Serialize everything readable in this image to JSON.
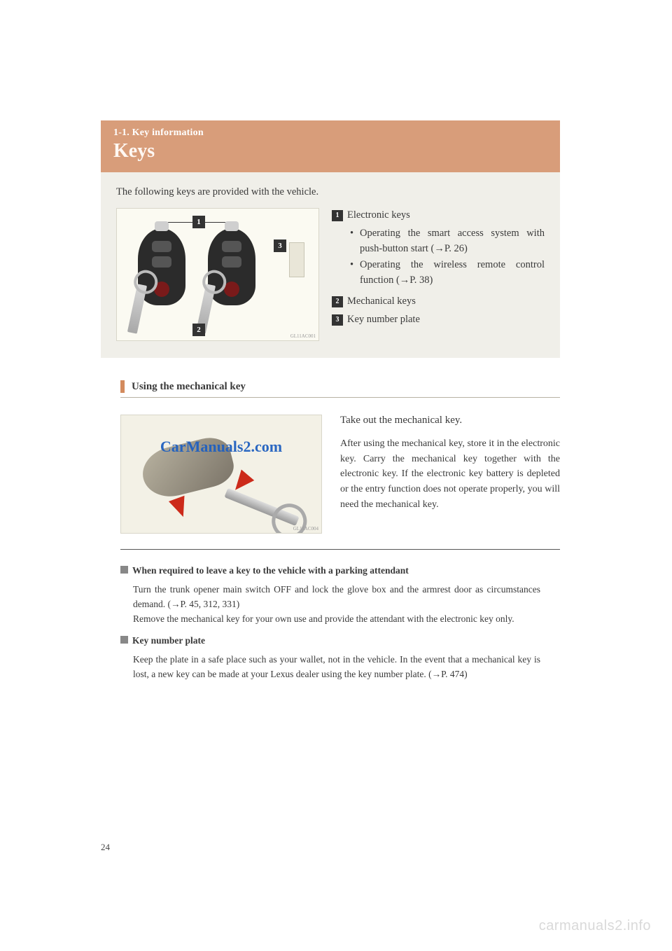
{
  "colors": {
    "band": "#d89d7a",
    "panel": "#f0efe9",
    "figure_bg": "#fbfaf2",
    "accent_bar": "#d38b5e",
    "arrow": "#cc2a1a",
    "text": "#3a3a3a",
    "watermark_text": "#2060c0",
    "footer_wm": "#d9d9d9"
  },
  "header": {
    "section": "1-1.   Key information",
    "title": "Keys"
  },
  "intro": {
    "lead": "The following keys are provided with the vehicle.",
    "figure": {
      "callouts": {
        "1": "1",
        "2": "2",
        "3": "3"
      },
      "code": "GL11AC001"
    },
    "legend": {
      "items": [
        {
          "num": "1",
          "label": "Electronic keys",
          "bullets": [
            "Operating the smart access system with push-button start (→P. 26)",
            "Operating the wireless remote control function (→P. 38)"
          ]
        },
        {
          "num": "2",
          "label": "Mechanical keys",
          "bullets": []
        },
        {
          "num": "3",
          "label": "Key number plate",
          "bullets": []
        }
      ]
    }
  },
  "mechanical": {
    "heading": "Using the mechanical key",
    "watermark": "CarManuals2.com",
    "figure_code": "GL11AC004",
    "lead": "Take out the mechanical key.",
    "body": "After using the mechanical key, store it in the electronic key. Carry the mechanical key together with the electronic key. If the electronic key battery is depleted or the entry function does not operate properly, you will need the mechanical key."
  },
  "notes": [
    {
      "head": "When required to leave a key to the vehicle with a parking attendant",
      "body": "Turn the trunk opener main switch OFF and lock the glove box and the armrest door as circumstances demand. (→P. 45, 312, 331)\nRemove the mechanical key for your own use and provide the attendant with the electronic key only."
    },
    {
      "head": "Key number plate",
      "body": "Keep the plate in a safe place such as your wallet, not in the vehicle. In the event that a mechanical key is lost, a new key can be made at your Lexus dealer using the key number plate. (→P. 474)"
    }
  ],
  "page_number": "24",
  "footer_watermark": "carmanuals2.info"
}
